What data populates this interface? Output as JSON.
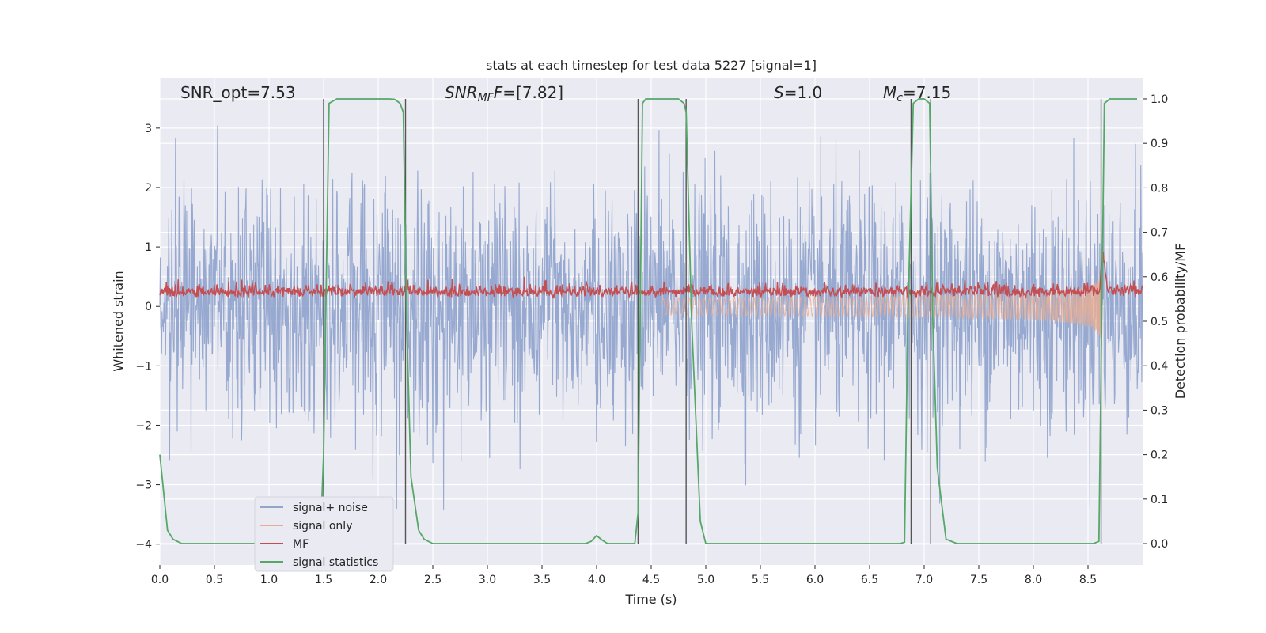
{
  "chart_data": {
    "type": "line",
    "title": "stats at each timestep for test data 5227 [signal=1]",
    "xlabel": "Time (s)",
    "ylabel": "Whitened strain",
    "y2label": "Detection probability/MF",
    "xlim": [
      0,
      9.0
    ],
    "ylim": [
      -4.35,
      3.85
    ],
    "y2lim": [
      -0.048,
      1.048
    ],
    "x_ticks": [
      "0.0",
      "0.5",
      "1.0",
      "1.5",
      "2.0",
      "2.5",
      "3.0",
      "3.5",
      "4.0",
      "4.5",
      "5.0",
      "5.5",
      "6.0",
      "6.5",
      "7.0",
      "7.5",
      "8.0",
      "8.5"
    ],
    "x_tick_values": [
      0,
      0.5,
      1,
      1.5,
      2,
      2.5,
      3,
      3.5,
      4,
      4.5,
      5,
      5.5,
      6,
      6.5,
      7,
      7.5,
      8,
      8.5
    ],
    "y_ticks": [
      "3",
      "2",
      "1",
      "0",
      "−1",
      "−2",
      "−3",
      "−4"
    ],
    "y_tick_values": [
      3,
      2,
      1,
      0,
      -1,
      -2,
      -3,
      -4
    ],
    "y2_ticks": [
      "1.0",
      "0.9",
      "0.8",
      "0.7",
      "0.6",
      "0.5",
      "0.4",
      "0.3",
      "0.2",
      "0.1",
      "0.0"
    ],
    "y2_tick_values": [
      1.0,
      0.9,
      0.8,
      0.7,
      0.6,
      0.5,
      0.4,
      0.3,
      0.2,
      0.1,
      0.0
    ],
    "annotations": {
      "snr_opt": "SNR_opt=7.53",
      "snr_mf_main": "SNR",
      "snr_mf_sub": "MF",
      "snr_mf_rest": "=[7.82]",
      "s_main": "S",
      "s_rest": "=1.0",
      "mc_main": "M",
      "mc_sub": "c",
      "mc_rest": "=7.15"
    },
    "segment_boundaries": [
      1.5,
      2.25,
      4.38,
      4.82,
      6.88,
      7.06,
      8.62
    ],
    "signal_statistics": {
      "x": [
        0.0,
        0.07,
        0.12,
        0.2,
        0.3,
        0.5,
        0.8,
        1.0,
        1.2,
        1.4,
        1.47,
        1.5,
        1.55,
        1.62,
        1.7,
        1.8,
        2.0,
        2.1,
        2.15,
        2.2,
        2.23,
        2.26,
        2.3,
        2.37,
        2.42,
        2.5,
        2.7,
        3.0,
        3.5,
        3.9,
        3.95,
        4.0,
        4.05,
        4.1,
        4.2,
        4.3,
        4.35,
        4.38,
        4.42,
        4.45,
        4.5,
        4.6,
        4.7,
        4.75,
        4.8,
        4.82,
        4.87,
        4.95,
        5.0,
        5.1,
        5.5,
        6.0,
        6.5,
        6.78,
        6.82,
        6.85,
        6.9,
        6.95,
        7.0,
        7.05,
        7.08,
        7.12,
        7.2,
        7.3,
        7.5,
        8.0,
        8.4,
        8.55,
        8.6,
        8.65,
        8.7,
        8.8,
        8.95
      ],
      "y": [
        0.2,
        0.03,
        0.01,
        0.0,
        0.0,
        0.0,
        0.0,
        0.0,
        0.0,
        0.0,
        0.01,
        0.2,
        0.99,
        1.0,
        1.0,
        1.0,
        1.0,
        1.0,
        0.999,
        0.99,
        0.97,
        0.5,
        0.15,
        0.03,
        0.01,
        0.0,
        0.0,
        0.0,
        0.0,
        0.0,
        0.005,
        0.018,
        0.008,
        0.0,
        0.0,
        0.0,
        0.0,
        0.07,
        0.99,
        1.0,
        1.0,
        1.0,
        1.0,
        1.0,
        0.99,
        0.97,
        0.5,
        0.05,
        0.0,
        0.0,
        0.0,
        0.0,
        0.0,
        0.0,
        0.003,
        0.5,
        0.99,
        1.0,
        1.0,
        0.99,
        0.5,
        0.17,
        0.01,
        0.0,
        0.0,
        0.0,
        0.0,
        0.0,
        0.005,
        0.99,
        1.0,
        1.0,
        1.0
      ]
    },
    "legend": {
      "placement": "lower-left",
      "items": [
        {
          "label": "signal+ noise",
          "color": "#92a5cd"
        },
        {
          "label": "signal only",
          "color": "#e8ac92"
        },
        {
          "label": "MF",
          "color": "#c44e52"
        },
        {
          "label": "signal statistics",
          "color": "#55a868"
        }
      ]
    },
    "colors": {
      "background": "#eaeaf2",
      "grid": "#ffffff",
      "noise": "#92a5cd",
      "signal": "#e8ac92",
      "mf": "#c44e52",
      "stats": "#55a868",
      "boundary": "#555555"
    }
  }
}
